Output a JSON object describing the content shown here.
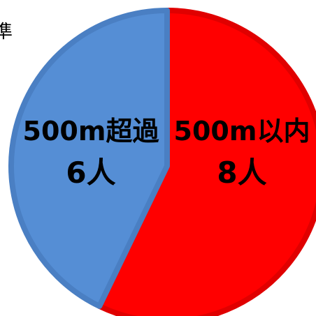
{
  "chart_data": {
    "type": "pie",
    "slices": [
      {
        "label": "500m以内",
        "value": 8,
        "value_text": "8人",
        "color": "#ff0000",
        "edge": "#e00000"
      },
      {
        "label": "500m超過",
        "value": 6,
        "value_text": "6人",
        "color": "#558ed5",
        "edge": "#4a7fc3"
      }
    ],
    "start": "top",
    "direction": "clockwise",
    "legend": "none"
  },
  "clipped_edge_text": "準"
}
